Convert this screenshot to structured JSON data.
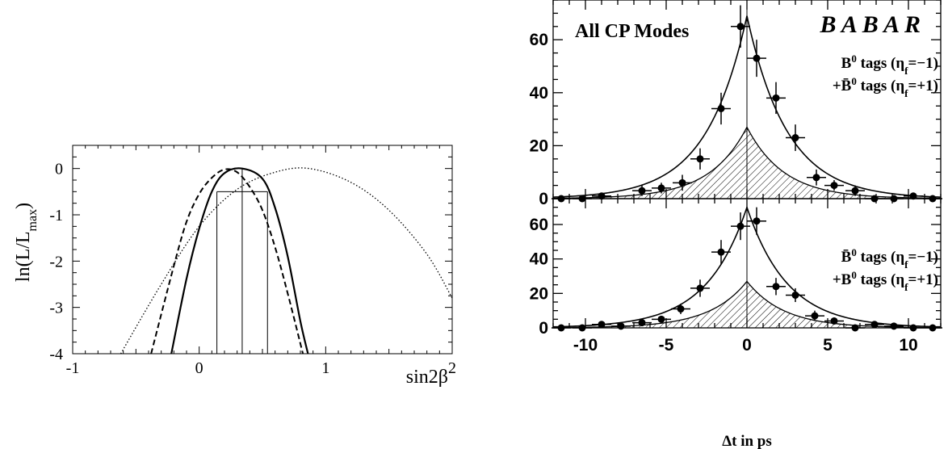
{
  "chart_data": [
    {
      "type": "line",
      "panel": "likelihood-scan",
      "xlabel": "sin2β",
      "ylabel": "ln(L/L_max)",
      "ylabel_main": "ln(L/L",
      "ylabel_sub": "max",
      "ylabel_close": ")",
      "xlim": [
        -1,
        2
      ],
      "ylim": [
        -4,
        0.5
      ],
      "xticks": [
        -1,
        0,
        1,
        2
      ],
      "xtick_labels": [
        "-1",
        "0",
        "1",
        "2"
      ],
      "yticks": [
        0,
        -1,
        -2,
        -3,
        -4
      ],
      "ytick_labels": [
        "0",
        "-1",
        "-2",
        "-3",
        "-4"
      ],
      "series": [
        {
          "style": "solid",
          "x": [
            -0.22,
            -0.1,
            0.0,
            0.1,
            0.2,
            0.34,
            0.5,
            0.6,
            0.7,
            0.8,
            0.86
          ],
          "y": [
            -4.0,
            -2.38,
            -1.3,
            -0.5,
            -0.1,
            0.0,
            -0.22,
            -0.85,
            -1.9,
            -3.3,
            -4.0
          ]
        },
        {
          "style": "dashed",
          "x": [
            -0.38,
            -0.2,
            -0.1,
            0.0,
            0.1,
            0.2,
            0.3,
            0.4,
            0.5,
            0.6,
            0.7,
            0.82
          ],
          "y": [
            -4.0,
            -2.1,
            -1.15,
            -0.55,
            -0.2,
            -0.02,
            -0.08,
            -0.4,
            -0.9,
            -1.7,
            -2.7,
            -4.0
          ]
        },
        {
          "style": "dotted",
          "x": [
            -0.62,
            -0.3,
            0.0,
            0.3,
            0.6,
            0.87,
            1.2,
            1.5,
            1.8,
            2.0
          ],
          "y": [
            -4.0,
            -2.5,
            -1.25,
            -0.45,
            -0.08,
            0.0,
            -0.3,
            -0.9,
            -1.85,
            -2.8
          ]
        }
      ],
      "reference_lines": {
        "horizontal_y": -0.5,
        "horizontal_x_range": [
          0.14,
          0.54
        ],
        "vertical_x": [
          0.14,
          0.34,
          0.54
        ]
      }
    },
    {
      "type": "scatter",
      "panel": "delta-t-top",
      "title": "All CP Modes",
      "experiment": "B A B A R",
      "legend_lines": [
        {
          "parts": [
            "B",
            "0",
            " tags (η",
            "f",
            "=−1)"
          ]
        },
        {
          "parts": [
            "+B̄",
            "0",
            " tags (η",
            "f",
            "=+1)"
          ]
        }
      ],
      "xlim": [
        -12,
        12
      ],
      "ylim": [
        0,
        75
      ],
      "yticks": [
        0,
        20,
        40,
        60
      ],
      "ytick_labels": [
        "0",
        "20",
        "40",
        "60"
      ],
      "x": [
        -11.5,
        -10.2,
        -9.0,
        -6.5,
        -5.3,
        -4.0,
        -2.9,
        -1.6,
        -0.4,
        0.6,
        1.8,
        3.0,
        4.3,
        5.4,
        6.7,
        7.9,
        9.1,
        10.3,
        11.5
      ],
      "y": [
        0,
        0,
        1,
        3,
        4,
        6,
        15,
        34,
        65,
        53,
        38,
        23,
        8,
        5,
        3,
        0,
        0,
        1,
        0
      ],
      "yerr": [
        0,
        0,
        1,
        2,
        2,
        3,
        4,
        6,
        8,
        7,
        6,
        5,
        3,
        2,
        2,
        0,
        0,
        1,
        0
      ],
      "fit_peak": 69,
      "fit_tau": 2.5,
      "background_peak": 27,
      "background_tau": 2.3
    },
    {
      "type": "scatter",
      "panel": "delta-t-bottom",
      "xlabel": "Δt in ps",
      "legend_lines": [
        {
          "parts": [
            "B̄",
            "0",
            " tags (η",
            "f",
            "=−1)"
          ]
        },
        {
          "parts": [
            "+B",
            "0",
            " tags (η",
            "f",
            "=+1)"
          ]
        }
      ],
      "xlim": [
        -12,
        12
      ],
      "ylim": [
        0,
        75
      ],
      "xticks": [
        -10,
        -5,
        0,
        5,
        10
      ],
      "xtick_labels": [
        "-10",
        "-5",
        "0",
        "5",
        "10"
      ],
      "yticks": [
        0,
        20,
        40,
        60
      ],
      "ytick_labels": [
        "0",
        "20",
        "40",
        "60"
      ],
      "x": [
        -11.5,
        -10.2,
        -9.0,
        -7.8,
        -6.5,
        -5.3,
        -4.1,
        -2.9,
        -1.6,
        -0.4,
        0.6,
        1.8,
        3.0,
        4.2,
        5.4,
        6.7,
        7.9,
        9.1,
        10.3,
        11.5
      ],
      "y": [
        0,
        0,
        2,
        1,
        3,
        5,
        11,
        23,
        44,
        59,
        62,
        24,
        19,
        7,
        4,
        0,
        2,
        1,
        0,
        0
      ],
      "yerr": [
        0,
        0,
        1,
        1,
        2,
        2,
        3,
        5,
        7,
        8,
        8,
        5,
        4,
        3,
        2,
        0,
        1,
        1,
        0,
        0
      ],
      "fit_peak": 70,
      "fit_tau": 2.5,
      "background_peak": 27,
      "background_tau": 2.3
    }
  ]
}
